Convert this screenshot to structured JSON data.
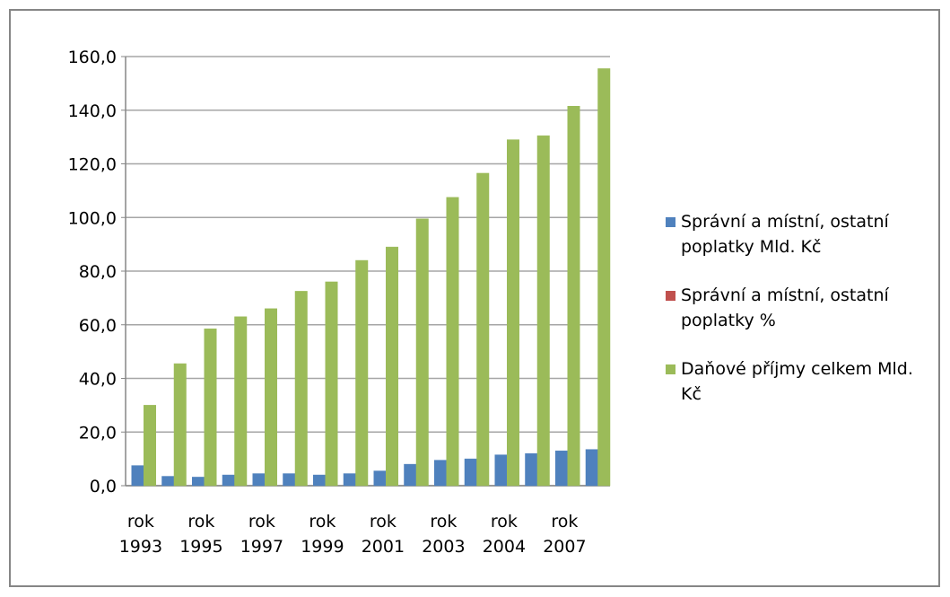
{
  "chart_data": {
    "type": "bar",
    "categories": [
      "rok 1993",
      null,
      "rok 1995",
      null,
      "rok 1997",
      null,
      "rok 1999",
      null,
      "rok 2001",
      null,
      "rok 2003",
      null,
      "rok 2004",
      null,
      "rok 2007",
      null
    ],
    "series": [
      {
        "name": "Správní a místní, ostatní poplatky Mld. Kč",
        "color": "#4f81bd",
        "values": [
          7.5,
          3.5,
          3.2,
          4.0,
          4.5,
          4.5,
          4.0,
          4.5,
          5.5,
          8.0,
          9.5,
          10.0,
          11.5,
          12.0,
          13.0,
          13.5
        ]
      },
      {
        "name": "Správní a místní, ostatní poplatky %",
        "color": "#c0504d",
        "values": [
          0,
          0,
          0,
          0,
          0,
          0,
          0,
          0,
          0,
          0,
          0,
          0,
          0,
          0,
          0,
          0
        ]
      },
      {
        "name": "Daňové příjmy celkem Mld. Kč",
        "color": "#9bbb59",
        "values": [
          30.0,
          45.5,
          58.5,
          63.0,
          66.0,
          72.5,
          76.0,
          84.0,
          89.0,
          99.5,
          107.5,
          116.5,
          129.0,
          130.5,
          141.5,
          155.5
        ]
      }
    ],
    "ylim": [
      0,
      160
    ],
    "yticks": [
      {
        "value": 0,
        "label": "0,0"
      },
      {
        "value": 20,
        "label": "20,0"
      },
      {
        "value": 40,
        "label": "40,0"
      },
      {
        "value": 60,
        "label": "60,0"
      },
      {
        "value": 80,
        "label": "80,0"
      },
      {
        "value": 100,
        "label": "100,0"
      },
      {
        "value": 120,
        "label": "120,0"
      },
      {
        "value": 140,
        "label": "140,0"
      },
      {
        "value": 160,
        "label": "160,0"
      }
    ],
    "grid": true,
    "legend": "right"
  }
}
